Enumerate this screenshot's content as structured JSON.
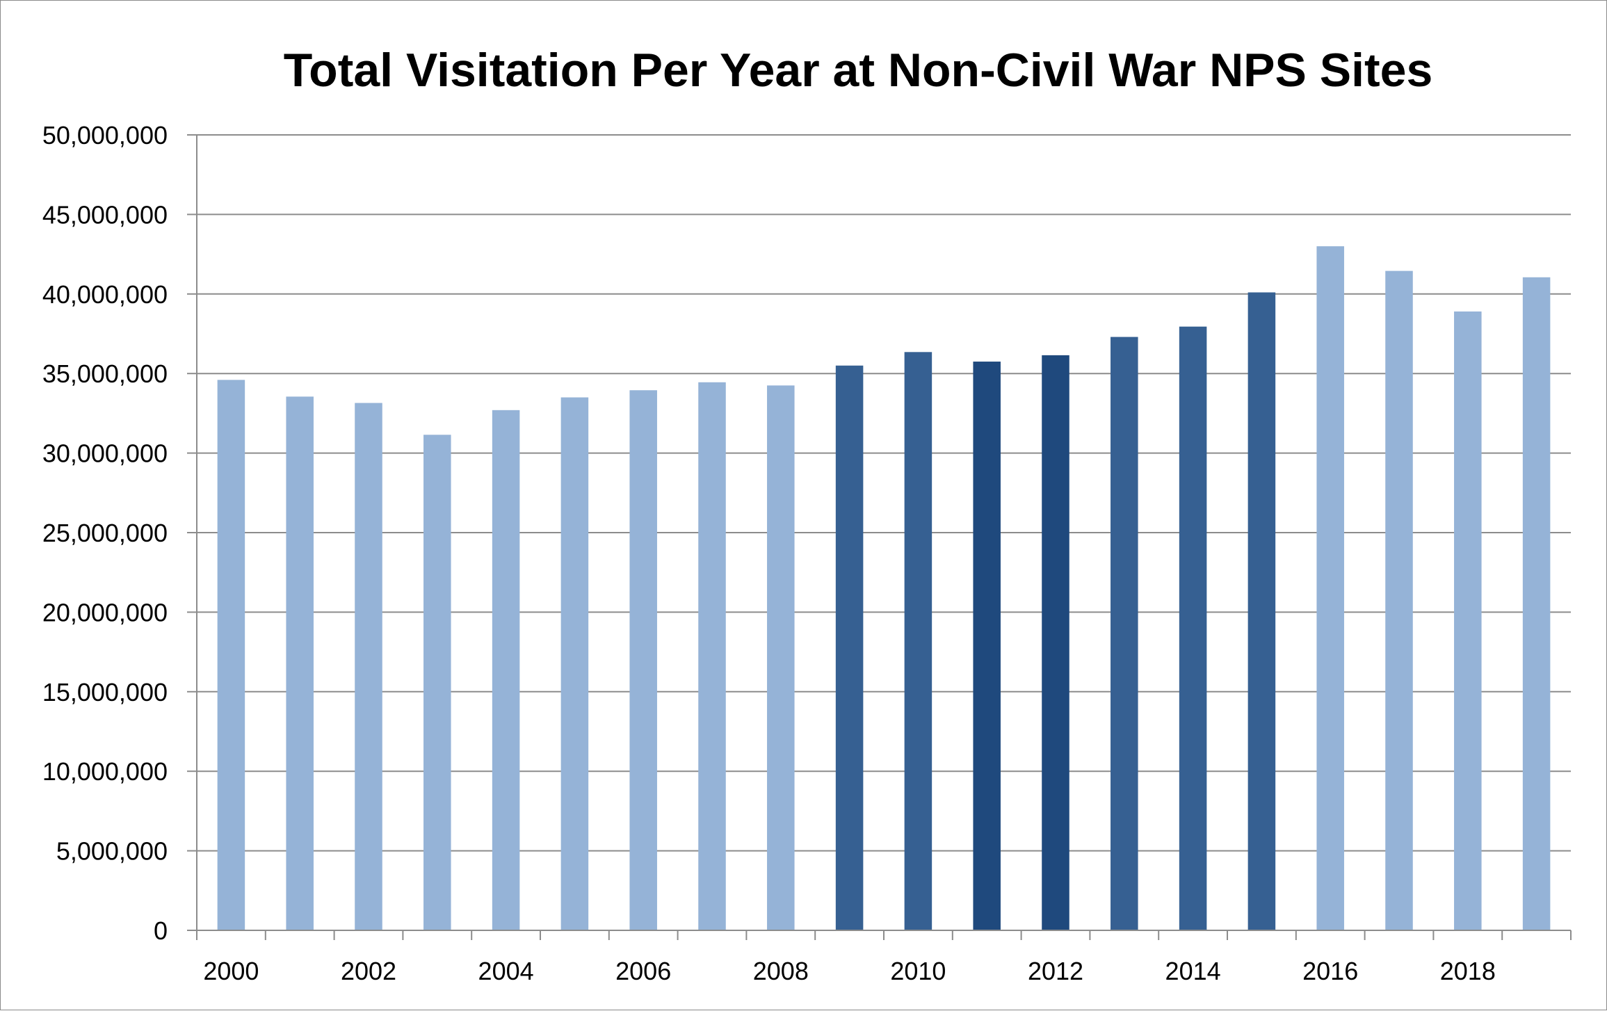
{
  "chart_data": {
    "type": "bar",
    "title": "Total Visitation Per Year at Non-Civil War NPS Sites",
    "xlabel": "",
    "ylabel": "",
    "categories": [
      "2000",
      "2001",
      "2002",
      "2003",
      "2004",
      "2005",
      "2006",
      "2007",
      "2008",
      "2009",
      "2010",
      "2011",
      "2012",
      "2013",
      "2014",
      "2015",
      "2016",
      "2017",
      "2018",
      "2019"
    ],
    "x_tick_labels": [
      "2000",
      "2002",
      "2004",
      "2006",
      "2008",
      "2010",
      "2012",
      "2014",
      "2016",
      "2018"
    ],
    "values": [
      34600000,
      33550000,
      33150000,
      31150000,
      32700000,
      33500000,
      33950000,
      34450000,
      34250000,
      35500000,
      36350000,
      35750000,
      36150000,
      37300000,
      37950000,
      40100000,
      43000000,
      41450000,
      38900000,
      41050000
    ],
    "bar_colors": [
      "#95b3d7",
      "#95b3d7",
      "#95b3d7",
      "#95b3d7",
      "#95b3d7",
      "#95b3d7",
      "#95b3d7",
      "#95b3d7",
      "#95b3d7",
      "#366092",
      "#366092",
      "#1f497d",
      "#1f497d",
      "#366092",
      "#366092",
      "#366092",
      "#95b3d7",
      "#95b3d7",
      "#95b3d7",
      "#95b3d7"
    ],
    "ylim": [
      0,
      50000000
    ],
    "y_ticks": [
      0,
      5000000,
      10000000,
      15000000,
      20000000,
      25000000,
      30000000,
      35000000,
      40000000,
      45000000,
      50000000
    ],
    "y_tick_labels": [
      "0",
      "5,000,000",
      "10,000,000",
      "15,000,000",
      "20,000,000",
      "25,000,000",
      "30,000,000",
      "35,000,000",
      "40,000,000",
      "45,000,000",
      "50,000,000"
    ],
    "grid": true,
    "legend": "none",
    "gridline_color": "#8c8c8c"
  }
}
